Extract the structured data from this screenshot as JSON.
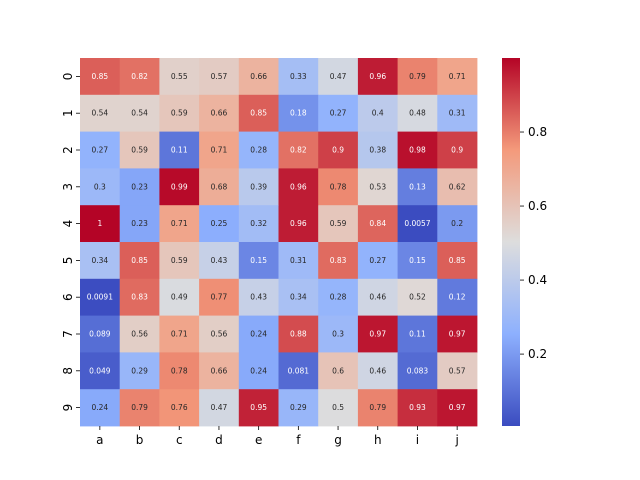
{
  "chart_data": {
    "type": "heatmap",
    "colormap": "coolwarm",
    "annotated": true,
    "columns": [
      "a",
      "b",
      "c",
      "d",
      "e",
      "f",
      "g",
      "h",
      "i",
      "j"
    ],
    "rows": [
      "0",
      "1",
      "2",
      "3",
      "4",
      "5",
      "6",
      "7",
      "8",
      "9"
    ],
    "values": [
      [
        0.85,
        0.82,
        0.55,
        0.57,
        0.66,
        0.33,
        0.47,
        0.96,
        0.79,
        0.71
      ],
      [
        0.54,
        0.54,
        0.59,
        0.66,
        0.85,
        0.18,
        0.27,
        0.4,
        0.48,
        0.31
      ],
      [
        0.27,
        0.59,
        0.11,
        0.71,
        0.28,
        0.82,
        0.9,
        0.38,
        0.98,
        0.9
      ],
      [
        0.3,
        0.23,
        0.99,
        0.68,
        0.39,
        0.96,
        0.78,
        0.53,
        0.13,
        0.62
      ],
      [
        1,
        0.23,
        0.71,
        0.25,
        0.32,
        0.96,
        0.59,
        0.84,
        0.0057,
        0.2
      ],
      [
        0.34,
        0.85,
        0.59,
        0.43,
        0.15,
        0.31,
        0.83,
        0.27,
        0.15,
        0.85
      ],
      [
        0.0091,
        0.83,
        0.49,
        0.77,
        0.43,
        0.34,
        0.28,
        0.46,
        0.52,
        0.12
      ],
      [
        0.089,
        0.56,
        0.71,
        0.56,
        0.24,
        0.88,
        0.3,
        0.97,
        0.11,
        0.97
      ],
      [
        0.049,
        0.29,
        0.78,
        0.66,
        0.24,
        0.081,
        0.6,
        0.46,
        0.083,
        0.57
      ],
      [
        0.24,
        0.79,
        0.76,
        0.47,
        0.95,
        0.29,
        0.5,
        0.79,
        0.93,
        0.97
      ]
    ],
    "vmin": 0.0057,
    "vmax": 1.0,
    "colorbar": {
      "ticks": [
        0.2,
        0.4,
        0.6,
        0.8
      ],
      "tick_labels": [
        "0.2",
        "0.4",
        "0.6",
        "0.8"
      ]
    },
    "title": "",
    "xlabel": "",
    "ylabel": ""
  }
}
